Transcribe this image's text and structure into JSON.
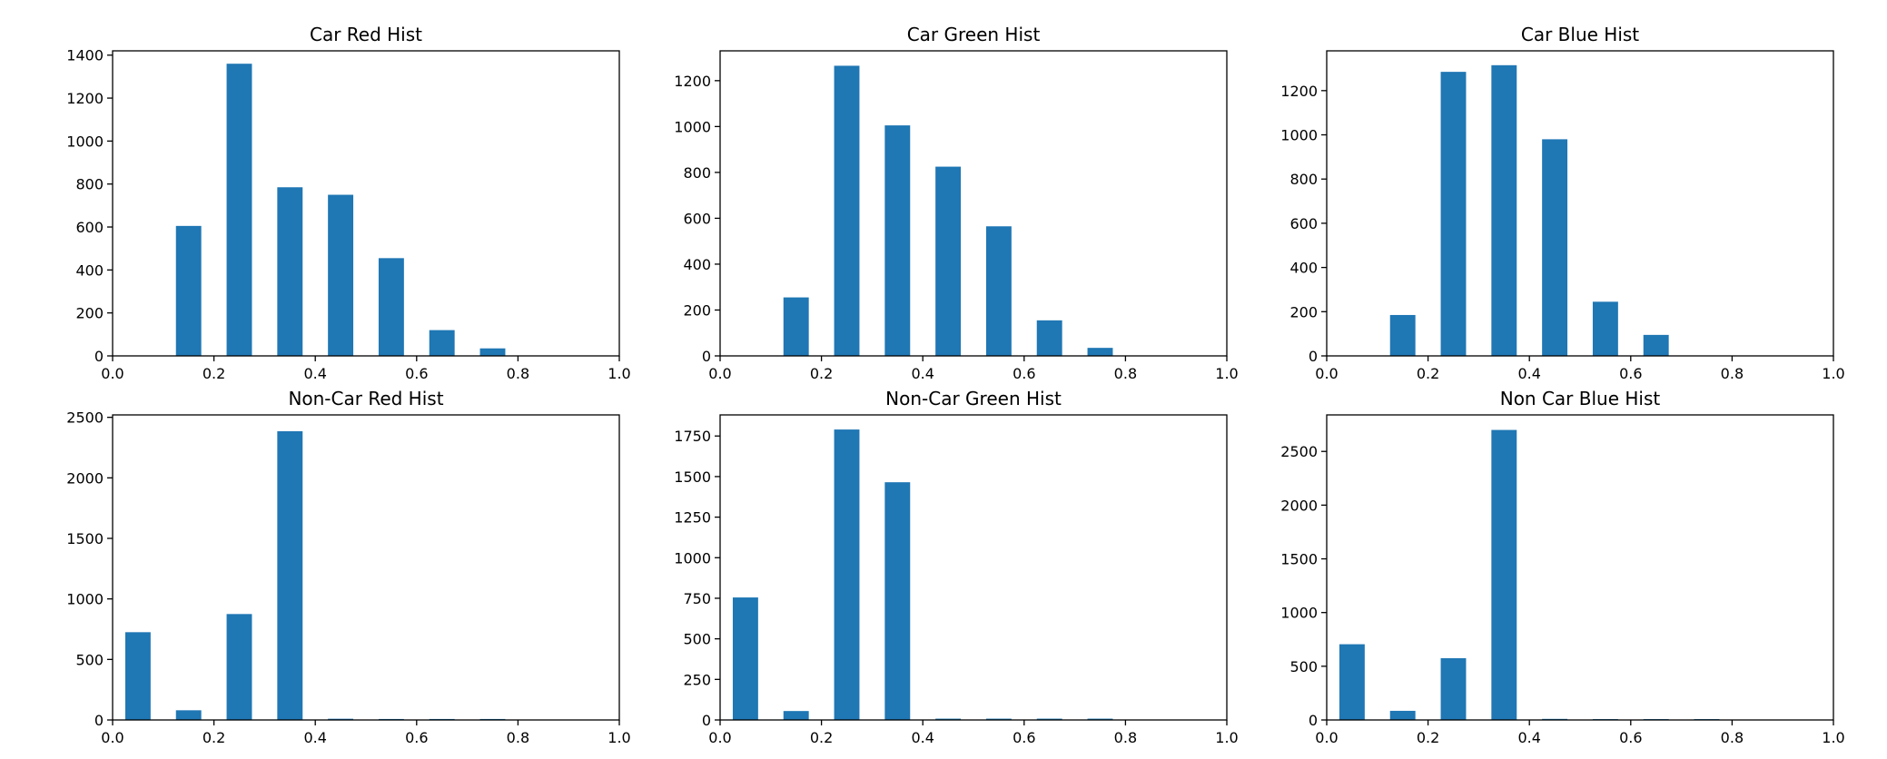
{
  "chart_data": [
    {
      "type": "bar",
      "title": "Car Red Hist",
      "xlim": [
        0,
        1
      ],
      "ylim": [
        0,
        1420
      ],
      "xticks": [
        "0.0",
        "0.2",
        "0.4",
        "0.6",
        "0.8",
        "1.0"
      ],
      "yticks": [
        0,
        200,
        400,
        600,
        800,
        1000,
        1200,
        1400
      ],
      "bin_width": 0.05,
      "x": [
        0.15,
        0.25,
        0.35,
        0.45,
        0.55,
        0.65,
        0.75
      ],
      "values": [
        605,
        1360,
        785,
        750,
        455,
        120,
        35
      ]
    },
    {
      "type": "bar",
      "title": "Car Green Hist",
      "xlim": [
        0,
        1
      ],
      "ylim": [
        0,
        1330
      ],
      "xticks": [
        "0.0",
        "0.2",
        "0.4",
        "0.6",
        "0.8",
        "1.0"
      ],
      "yticks": [
        0,
        200,
        400,
        600,
        800,
        1000,
        1200
      ],
      "bin_width": 0.05,
      "x": [
        0.15,
        0.25,
        0.35,
        0.45,
        0.55,
        0.65,
        0.75
      ],
      "values": [
        255,
        1265,
        1005,
        825,
        565,
        155,
        35
      ]
    },
    {
      "type": "bar",
      "title": "Car Blue Hist",
      "xlim": [
        0,
        1
      ],
      "ylim": [
        0,
        1380
      ],
      "xticks": [
        "0.0",
        "0.2",
        "0.4",
        "0.6",
        "0.8",
        "1.0"
      ],
      "yticks": [
        0,
        200,
        400,
        600,
        800,
        1000,
        1200
      ],
      "bin_width": 0.05,
      "x": [
        0.15,
        0.25,
        0.35,
        0.45,
        0.55,
        0.65
      ],
      "values": [
        185,
        1285,
        1315,
        980,
        245,
        95
      ]
    },
    {
      "type": "bar",
      "title": "Non-Car Red Hist",
      "xlim": [
        0,
        1
      ],
      "ylim": [
        0,
        2520
      ],
      "xticks": [
        "0.0",
        "0.2",
        "0.4",
        "0.6",
        "0.8",
        "1.0"
      ],
      "yticks": [
        0,
        500,
        1000,
        1500,
        2000,
        2500
      ],
      "bin_width": 0.05,
      "x": [
        0.05,
        0.15,
        0.25,
        0.35,
        0.45,
        0.55,
        0.65,
        0.75
      ],
      "values": [
        725,
        80,
        875,
        2385,
        10,
        8,
        8,
        8
      ]
    },
    {
      "type": "bar",
      "title": "Non-Car Green Hist",
      "xlim": [
        0,
        1
      ],
      "ylim": [
        0,
        1880
      ],
      "xticks": [
        "0.0",
        "0.2",
        "0.4",
        "0.6",
        "0.8",
        "1.0"
      ],
      "yticks": [
        0,
        250,
        500,
        750,
        1000,
        1250,
        1500,
        1750
      ],
      "bin_width": 0.05,
      "x": [
        0.05,
        0.15,
        0.25,
        0.35,
        0.45,
        0.55,
        0.65,
        0.75
      ],
      "values": [
        755,
        55,
        1790,
        1465,
        8,
        8,
        8,
        8
      ]
    },
    {
      "type": "bar",
      "title": "Non Car Blue Hist",
      "xlim": [
        0,
        1
      ],
      "ylim": [
        0,
        2840
      ],
      "xticks": [
        "0.0",
        "0.2",
        "0.4",
        "0.6",
        "0.8",
        "1.0"
      ],
      "yticks": [
        0,
        500,
        1000,
        1500,
        2000,
        2500
      ],
      "bin_width": 0.05,
      "x": [
        0.05,
        0.15,
        0.25,
        0.35,
        0.45,
        0.55,
        0.65,
        0.75
      ],
      "values": [
        705,
        85,
        575,
        2700,
        10,
        8,
        8,
        8
      ]
    }
  ],
  "colors": {
    "bar": "#1f77b4",
    "axis": "#000000",
    "background": "#ffffff"
  }
}
